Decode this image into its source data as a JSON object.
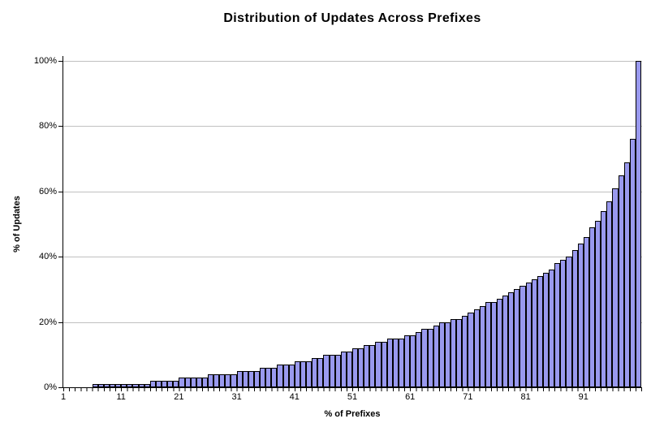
{
  "chart_data": {
    "type": "bar",
    "title": "Distribution of Updates Across Prefixes",
    "xlabel": "% of Prefixes",
    "ylabel": "% of Updates",
    "ylim": [
      0,
      100
    ],
    "xlim": [
      1,
      100
    ],
    "grid": true,
    "legend": false,
    "y_tick_labels": [
      "0%",
      "20%",
      "40%",
      "60%",
      "80%",
      "100%"
    ],
    "y_tick_values": [
      0,
      20,
      40,
      60,
      80,
      100
    ],
    "x_tick_labels": [
      "1",
      "11",
      "21",
      "31",
      "41",
      "51",
      "61",
      "71",
      "81",
      "91"
    ],
    "x_tick_values": [
      1,
      11,
      21,
      31,
      41,
      51,
      61,
      71,
      81,
      91
    ],
    "values": [
      0,
      0,
      0,
      0,
      0,
      1,
      1,
      1,
      1,
      1,
      1,
      1,
      1,
      1,
      1,
      2,
      2,
      2,
      2,
      2,
      3,
      3,
      3,
      3,
      3,
      4,
      4,
      4,
      4,
      4,
      5,
      5,
      5,
      5,
      6,
      6,
      6,
      7,
      7,
      7,
      8,
      8,
      8,
      9,
      9,
      10,
      10,
      10,
      11,
      11,
      12,
      12,
      13,
      13,
      14,
      14,
      15,
      15,
      15,
      16,
      16,
      17,
      18,
      18,
      19,
      20,
      20,
      21,
      21,
      22,
      23,
      24,
      25,
      26,
      26,
      27,
      28,
      29,
      30,
      31,
      32,
      33,
      34,
      35,
      36,
      38,
      39,
      40,
      42,
      44,
      46,
      49,
      51,
      54,
      57,
      61,
      65,
      69,
      76,
      100
    ],
    "colors": {
      "bar_fill": "#9999EE",
      "bar_border": "#000000",
      "gridline": "#C0C0C0",
      "axis": "#000000",
      "background": "#FFFFFF",
      "text": "#000000"
    }
  }
}
